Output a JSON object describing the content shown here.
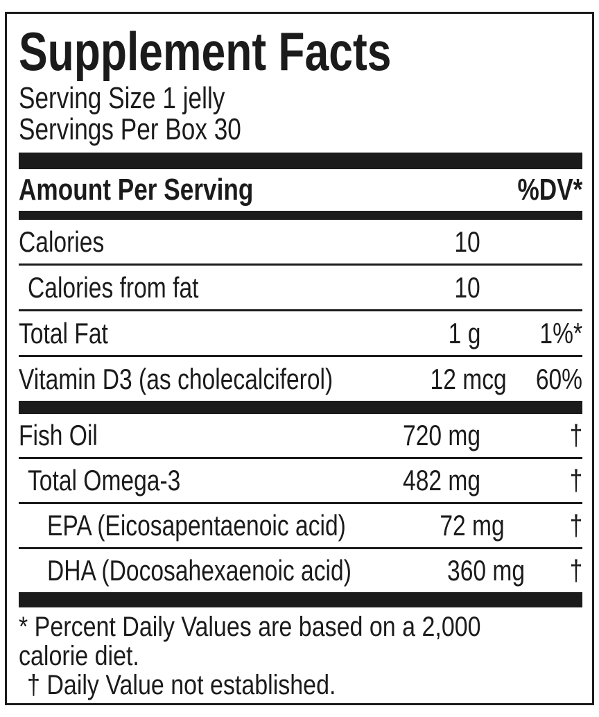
{
  "label": {
    "title": "Supplement Facts",
    "serving": {
      "size": "Serving Size 1 jelly",
      "per_box": "Servings Per Box 30"
    },
    "columns": {
      "amount_header": "Amount Per Serving",
      "dv_header": "%DV*"
    },
    "rows": [
      {
        "name": "Calories",
        "amount": "10",
        "dv": "",
        "indent": 0
      },
      {
        "name": "Calories from fat",
        "amount": "10",
        "dv": "",
        "indent": 1
      },
      {
        "name": "Total Fat",
        "amount": "1 g",
        "dv": "1%*",
        "indent": 0
      },
      {
        "name": "Vitamin D3 (as cholecalciferol)",
        "amount": "12 mcg",
        "dv": "60%",
        "indent": 0
      },
      {
        "name": "Fish Oil",
        "amount": "720 mg",
        "dv": "†",
        "indent": 0
      },
      {
        "name": "Total Omega-3",
        "amount": "482 mg",
        "dv": "†",
        "indent": 1
      },
      {
        "name": "EPA (Eicosapentaenoic acid)",
        "amount": "72 mg",
        "dv": "†",
        "indent": 2
      },
      {
        "name": "DHA (Docosahexaenoic acid)",
        "amount": "360 mg",
        "dv": "†",
        "indent": 2
      }
    ],
    "footnotes": {
      "line1": "* Percent Daily Values are based on a 2,000",
      "line2": "calorie diet.",
      "line3": "† Daily Value not established."
    },
    "colors": {
      "ink": "#1b1b1b",
      "background": "#ffffff"
    }
  }
}
